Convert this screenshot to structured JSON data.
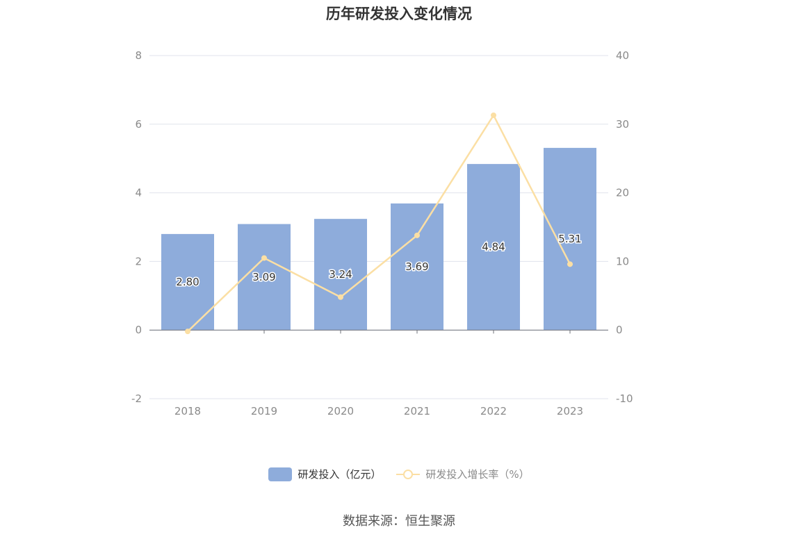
{
  "chart_data": {
    "type": "bar",
    "title": "历年研发投入变化情况",
    "categories": [
      "2018",
      "2019",
      "2020",
      "2021",
      "2022",
      "2023"
    ],
    "series": [
      {
        "name": "研发投入（亿元）",
        "type": "bar",
        "axis": "left",
        "values": [
          2.8,
          3.09,
          3.24,
          3.69,
          4.84,
          5.31
        ],
        "labels": [
          "2.80",
          "3.09",
          "3.24",
          "3.69",
          "4.84",
          "5.31"
        ],
        "color": "#8eacdb"
      },
      {
        "name": "研发投入增长率（%）",
        "type": "line",
        "axis": "right",
        "values": [
          -0.2,
          10.5,
          4.8,
          13.8,
          31.3,
          9.6
        ],
        "color": "#fbdfa4"
      }
    ],
    "y_left": {
      "min": -2,
      "max": 8,
      "ticks": [
        "-2",
        "0",
        "2",
        "4",
        "6",
        "8"
      ]
    },
    "y_right": {
      "min": -10,
      "max": 40,
      "ticks": [
        "-10",
        "0",
        "10",
        "20",
        "30",
        "40"
      ]
    },
    "grid": true,
    "legend_position": "bottom-center"
  },
  "source_text": "数据来源：恒生聚源"
}
